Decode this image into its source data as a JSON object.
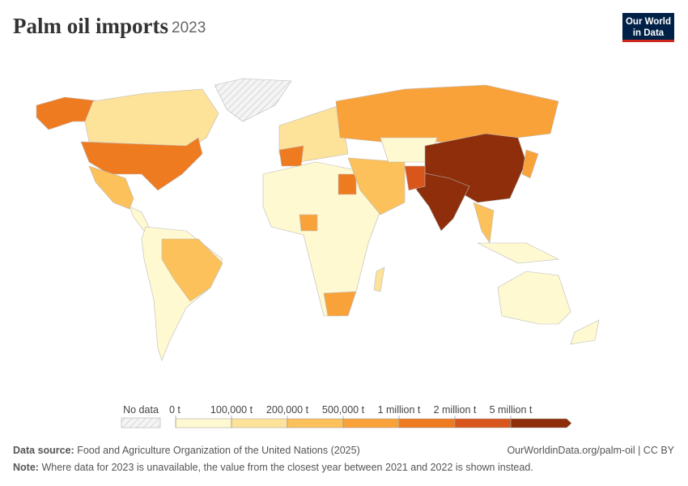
{
  "title": "Palm oil imports",
  "year": "2023",
  "logo": {
    "line1": "Our World",
    "line2": "in Data"
  },
  "legend": {
    "no_data": "No data",
    "bins": [
      {
        "value": 0,
        "label": "0 t"
      },
      {
        "value": 100000,
        "label": "100,000 t"
      },
      {
        "value": 200000,
        "label": "200,000 t"
      },
      {
        "value": 500000,
        "label": "500,000 t"
      },
      {
        "value": 1000000,
        "label": "1 million t"
      },
      {
        "value": 2000000,
        "label": "2 million t"
      },
      {
        "value": 5000000,
        "label": "5 million t"
      }
    ],
    "colors": [
      "#fef9d0",
      "#fde29a",
      "#fcc15a",
      "#f9a23a",
      "#ef7b21",
      "#d8561b",
      "#8e2e0b"
    ]
  },
  "footer": {
    "source_label": "Data source:",
    "source": "Food and Agriculture Organization of the United Nations (2025)",
    "url": "OurWorldinData.org/palm-oil | CC BY",
    "note_label": "Note:",
    "note": "Where data for 2023 is unavailable, the value from the closest year between 2021 and 2022 is shown instead."
  }
}
